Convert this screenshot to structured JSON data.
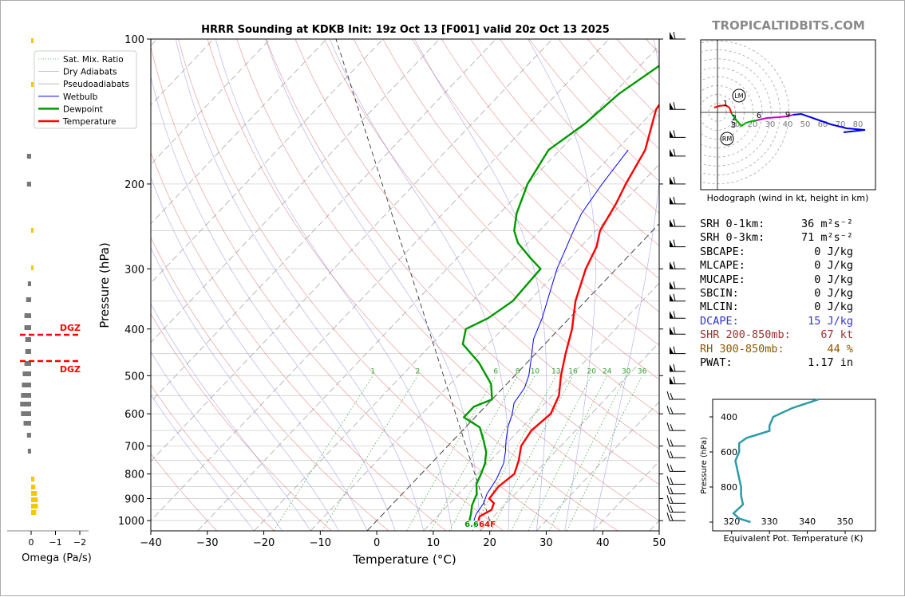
{
  "site_brand": "TROPICALTIDBITS.COM",
  "chart_data": [
    {
      "type": "line",
      "title": "HRRR Sounding at KDKB Init: 19z Oct 13 [F001] valid 20z Oct 13 2025",
      "xlabel": "Temperature (°C)",
      "ylabel": "Pressure (hPa)",
      "xlim": [
        -40,
        50
      ],
      "ylim": [
        1050,
        100
      ],
      "y_scale": "log",
      "x_ticks": [
        "−40",
        "−30",
        "−20",
        "−10",
        "0",
        "10",
        "20",
        "30",
        "40",
        "50"
      ],
      "y_ticks": [
        "100",
        "200",
        "300",
        "400",
        "500",
        "600",
        "700",
        "800",
        "900",
        "1000"
      ],
      "legend": {
        "placement": "top-left",
        "entries": [
          {
            "label": "Sat. Mix. Ratio",
            "color": "#2ca02c",
            "style": "dotted"
          },
          {
            "label": "Dry Adiabats",
            "color": "#b0b0b0",
            "style": "solid"
          },
          {
            "label": "Pseudoadiabats",
            "color": "#b0b0b0",
            "style": "solid"
          },
          {
            "label": "Wetbulb",
            "color": "#0000ff",
            "style": "solid"
          },
          {
            "label": "Dewpoint",
            "color": "#009900",
            "style": "solid"
          },
          {
            "label": "Temperature",
            "color": "#ff0000",
            "style": "solid"
          }
        ]
      },
      "series": [
        {
          "name": "Temperature",
          "color": "#ff0000",
          "points": [
            [
              18,
              1000
            ],
            [
              17.5,
              980
            ],
            [
              18.5,
              950
            ],
            [
              17.8,
              920
            ],
            [
              16.2,
              900
            ],
            [
              15.8,
              850
            ],
            [
              16.5,
              800
            ],
            [
              15,
              750
            ],
            [
              13,
              700
            ],
            [
              12.2,
              650
            ],
            [
              12.8,
              600
            ],
            [
              11.2,
              550
            ],
            [
              8.2,
              500
            ],
            [
              5.3,
              450
            ],
            [
              2.3,
              400
            ],
            [
              -1.8,
              350
            ],
            [
              -5.4,
              300
            ],
            [
              -7.2,
              270
            ],
            [
              -9.3,
              250
            ],
            [
              -11,
              220
            ],
            [
              -12.6,
              200
            ],
            [
              -14.9,
              170
            ],
            [
              -19.8,
              140
            ],
            [
              -21.4,
              120
            ],
            [
              -22.2,
              110
            ],
            [
              -19.8,
              100
            ]
          ]
        },
        {
          "name": "Dewpoint",
          "color": "#009900",
          "points": [
            [
              16.4,
              1000
            ],
            [
              15.6,
              970
            ],
            [
              14.3,
              930
            ],
            [
              13.2,
              880
            ],
            [
              11.5,
              840
            ],
            [
              10.6,
              800
            ],
            [
              9.5,
              760
            ],
            [
              7.8,
              720
            ],
            [
              5.3,
              680
            ],
            [
              2.5,
              640
            ],
            [
              -2,
              610
            ],
            [
              -2,
              580
            ],
            [
              0,
              560
            ],
            [
              -2.8,
              520
            ],
            [
              -8.5,
              470
            ],
            [
              -14.5,
              430
            ],
            [
              -16.5,
              400
            ],
            [
              -14.4,
              380
            ],
            [
              -12.9,
              350
            ],
            [
              -13.2,
              320
            ],
            [
              -13.4,
              300
            ],
            [
              -17,
              285
            ],
            [
              -21.8,
              265
            ],
            [
              -24.5,
              250
            ],
            [
              -27,
              230
            ],
            [
              -30,
              200
            ],
            [
              -32,
              170
            ],
            [
              -30,
              150
            ],
            [
              -29,
              130
            ],
            [
              -26,
              110
            ],
            [
              -23,
              100
            ]
          ]
        },
        {
          "name": "Wetbulb",
          "color": "#0000ff",
          "points": [
            [
              17.2,
              1000
            ],
            [
              16.5,
              970
            ],
            [
              16,
              920
            ],
            [
              15,
              880
            ],
            [
              14.2,
              820
            ],
            [
              12.8,
              760
            ],
            [
              11.2,
              720
            ],
            [
              9.3,
              680
            ],
            [
              7.5,
              640
            ],
            [
              6,
              600
            ],
            [
              4.5,
              570
            ],
            [
              3.8,
              530
            ],
            [
              2.5,
              500
            ],
            [
              0,
              460
            ],
            [
              -2.8,
              420
            ],
            [
              -4.8,
              380
            ],
            [
              -7.5,
              340
            ],
            [
              -10.5,
              300
            ],
            [
              -12.5,
              270
            ],
            [
              -14,
              250
            ],
            [
              -15.5,
              230
            ],
            [
              -16.8,
              200
            ],
            [
              -17.9,
              170
            ]
          ]
        }
      ],
      "surface_labels": {
        "dewpoint": "6.6",
        "temperature": "64F"
      },
      "mixing_ratio_labels": [
        "1",
        "2",
        "6",
        "8",
        "10",
        "13",
        "16",
        "20",
        "24",
        "30",
        "36"
      ],
      "wind_barbs_note": "wind barbs along right edge"
    },
    {
      "type": "bar",
      "xlabel": "Omega (Pa/s)",
      "x_ticks": [
        "0",
        "−1",
        "−2"
      ],
      "annotations": [
        "DGZ",
        "DGZ"
      ]
    },
    {
      "type": "line",
      "title": "Hodograph (wind in kt, height in km)",
      "ring_labels": [
        "10",
        "20",
        "30",
        "40",
        "50",
        "60",
        "70",
        "80"
      ],
      "height_labels": [
        "1",
        "2",
        "3",
        "6",
        "9"
      ],
      "markers": [
        "LM",
        "RM"
      ]
    },
    {
      "type": "line",
      "xlabel": "Equivalent Pot. Temperature (K)",
      "ylabel": "Pressure (hPa)",
      "x_ticks": [
        "320",
        "330",
        "340",
        "350"
      ],
      "y_ticks": [
        "400",
        "600",
        "800"
      ],
      "color": "#2e9aa8",
      "series": [
        {
          "points": [
            [
              343,
              300
            ],
            [
              336,
              350
            ],
            [
              331,
              400
            ],
            [
              330,
              450
            ],
            [
              330,
              480
            ],
            [
              327,
              500
            ],
            [
              324,
              520
            ],
            [
              322,
              550
            ],
            [
              322,
              600
            ],
            [
              321,
              650
            ],
            [
              321.5,
              700
            ],
            [
              322,
              750
            ],
            [
              322.5,
              800
            ],
            [
              322.5,
              850
            ],
            [
              323,
              900
            ],
            [
              320.5,
              950
            ],
            [
              322,
              980
            ],
            [
              325,
              1000
            ]
          ]
        }
      ]
    }
  ],
  "stats": [
    {
      "label": "SRH 0-1km:",
      "value": "36 m²s⁻²",
      "color": "#000000"
    },
    {
      "label": "SRH 0-3km:",
      "value": "71 m²s⁻²",
      "color": "#000000"
    },
    {
      "label": "SBCAPE:",
      "value": "0 J/kg",
      "color": "#000000"
    },
    {
      "label": "MLCAPE:",
      "value": "0 J/kg",
      "color": "#000000"
    },
    {
      "label": "MUCAPE:",
      "value": "0 J/kg",
      "color": "#000000"
    },
    {
      "label": "SBCIN:",
      "value": "0 J/kg",
      "color": "#000000"
    },
    {
      "label": "MLCIN:",
      "value": "0 J/kg",
      "color": "#000000"
    },
    {
      "label": "DCAPE:",
      "value": "15 J/kg",
      "color": "#3333cc"
    },
    {
      "label": "SHR 200-850mb:",
      "value": "67 kt",
      "color": "#993333"
    },
    {
      "label": "RH 300-850mb:",
      "value": "44 %",
      "color": "#8b5a00"
    },
    {
      "label": "PWAT:",
      "value": "1.17 in",
      "color": "#000000"
    }
  ]
}
